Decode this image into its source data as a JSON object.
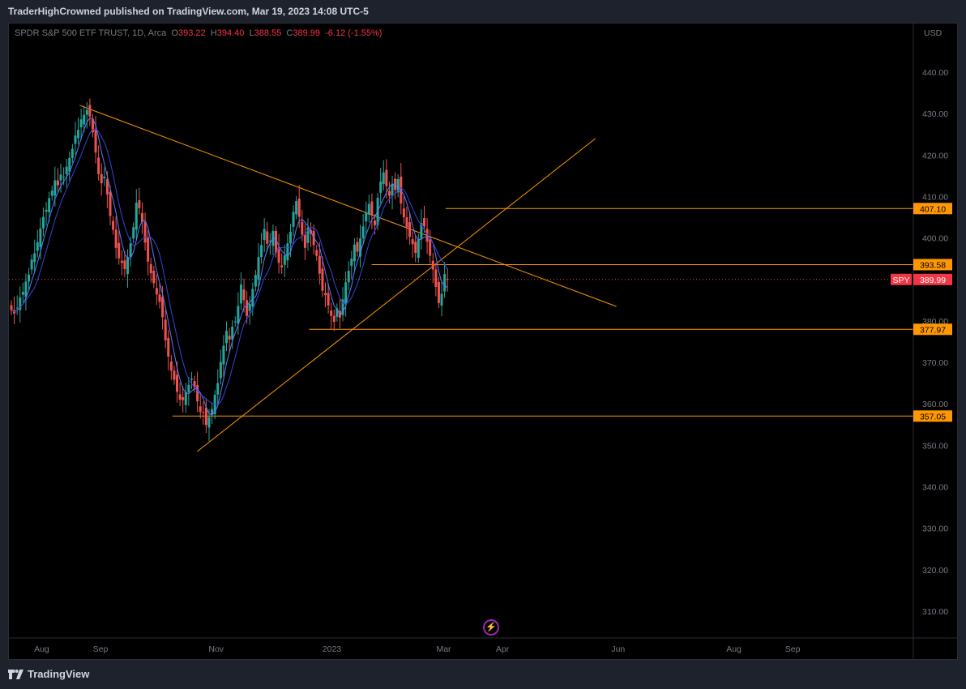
{
  "header": {
    "publish_line": "TraderHighCrowned published on TradingView.com, Mar 19, 2023 14:08 UTC-5"
  },
  "legend": {
    "symbol": "SPDR S&P 500 ETF TRUST, 1D, Arca",
    "open_label": "O",
    "open": "393.22",
    "high_label": "H",
    "high": "394.40",
    "low_label": "L",
    "low": "388.55",
    "close_label": "C",
    "close": "389.99",
    "change": "-6.12 (-1.55%)"
  },
  "footer": {
    "logo_text": "TradingView"
  },
  "colors": {
    "up": "#26a69a",
    "down": "#ef5350",
    "ma": "#3f5efb",
    "drawing": "#ff9800",
    "ticker_badge": "#f23645"
  },
  "chart_data": {
    "type": "candlestick",
    "symbol": "SPY",
    "currency": "USD",
    "ylim": [
      303,
      450
    ],
    "y_ticks": [
      "440.00",
      "430.00",
      "420.00",
      "410.00",
      "400.00",
      "390.00",
      "380.00",
      "370.00",
      "360.00",
      "350.00",
      "340.00",
      "330.00",
      "320.00",
      "310.00"
    ],
    "y_tick_values": [
      440,
      430,
      420,
      410,
      400,
      390,
      380,
      370,
      360,
      350,
      340,
      330,
      320,
      310
    ],
    "x_ticks": [
      "Aug",
      "Sep",
      "Nov",
      "2023",
      "Mar",
      "Apr",
      "Jun",
      "Aug",
      "Sep"
    ],
    "x_tick_days": [
      16,
      47,
      108,
      169,
      228,
      259,
      320,
      381,
      412
    ],
    "last_price": "389.99",
    "price_labels": [
      {
        "label": "407.10",
        "value": 407.1
      },
      {
        "label": "393.58",
        "value": 393.58
      },
      {
        "label": "377.97",
        "value": 377.97
      },
      {
        "label": "357.05",
        "value": 357.05
      }
    ],
    "horizontal_lines": [
      {
        "value": 407.1,
        "from_day": 229
      },
      {
        "value": 393.58,
        "from_day": 190
      },
      {
        "value": 377.97,
        "from_day": 157
      },
      {
        "value": 357.05,
        "from_day": 85
      }
    ],
    "trend_lines": [
      {
        "from": [
          36,
          432.0
        ],
        "to": [
          319,
          383.5
        ]
      },
      {
        "from": [
          98,
          348.5
        ],
        "to": [
          308,
          424.0
        ]
      }
    ],
    "ohlc_days": [],
    "closes": [
      382.6,
      381.8,
      383.2,
      385.7,
      387.0,
      389.5,
      391.2,
      394.8,
      396.3,
      399.0,
      402.3,
      405.1,
      406.8,
      409.6,
      411.4,
      413.9,
      412.7,
      415.3,
      414.8,
      417.2,
      419.3,
      421.5,
      424.7,
      426.1,
      428.6,
      429.7,
      430.9,
      429.3,
      425.5,
      420.6,
      415.4,
      413.2,
      414.8,
      410.5,
      405.3,
      402.0,
      397.6,
      395.1,
      394.0,
      392.5,
      395.4,
      398.7,
      402.6,
      408.5,
      407.2,
      403.9,
      398.9,
      394.3,
      391.5,
      389.1,
      386.4,
      384.6,
      380.9,
      375.3,
      371.4,
      368.0,
      365.8,
      362.9,
      361.0,
      360.9,
      362.8,
      364.6,
      366.1,
      363.9,
      360.6,
      358.0,
      357.9,
      354.9,
      356.8,
      358.7,
      362.2,
      365.0,
      370.1,
      374.0,
      377.6,
      375.5,
      378.6,
      379.9,
      383.6,
      388.8,
      385.0,
      381.2,
      384.1,
      387.7,
      391.1,
      395.4,
      398.3,
      402.2,
      398.6,
      399.3,
      401.7,
      396.5,
      394.0,
      392.9,
      395.8,
      398.7,
      401.5,
      406.3,
      408.9,
      405.1,
      400.8,
      397.6,
      402.5,
      401.1,
      398.3,
      395.7,
      391.4,
      387.3,
      386.2,
      383.7,
      381.2,
      379.8,
      383.0,
      380.8,
      385.2,
      389.3,
      392.1,
      395.0,
      398.4,
      396.7,
      399.9,
      402.8,
      406.2,
      408.2,
      405.4,
      403.1,
      409.7,
      413.6,
      415.8,
      412.5,
      410.2,
      413.1,
      411.6,
      414.2,
      408.3,
      405.0,
      402.6,
      400.3,
      398.5,
      396.4,
      399.8,
      403.6,
      402.8,
      399.1,
      395.7,
      392.4,
      388.2,
      384.3,
      386.5,
      391.3,
      389.99
    ]
  }
}
